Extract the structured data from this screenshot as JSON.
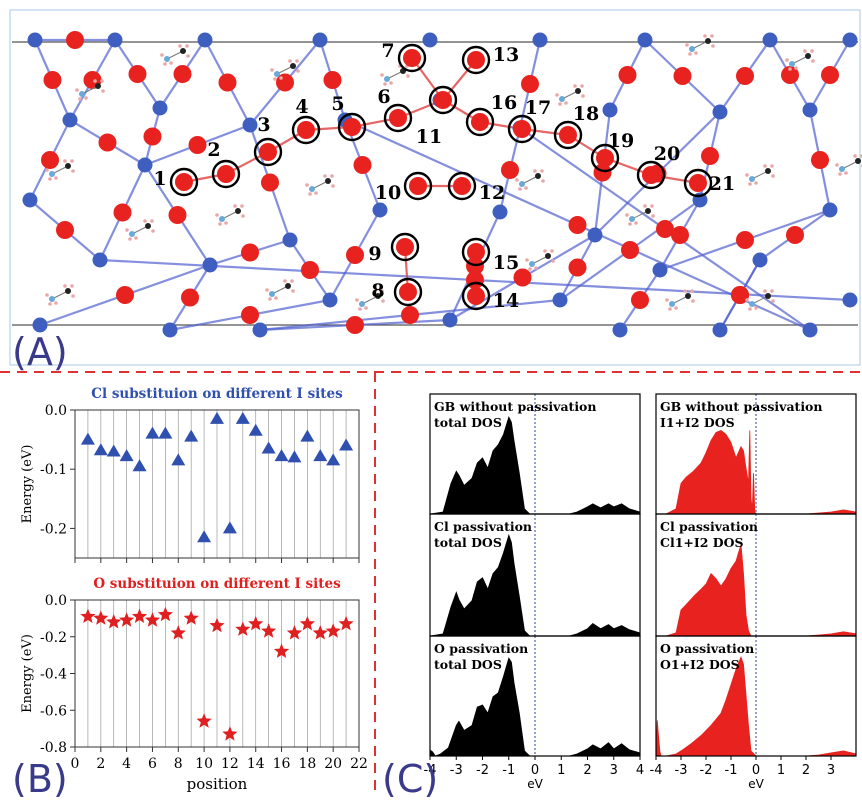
{
  "panel_labels": {
    "a": "(A)",
    "b": "(B)",
    "c": "(C)"
  },
  "colors": {
    "atom_red": "#e8231f",
    "atom_blue": "#3f5fc0",
    "bond_red": "#e04040",
    "bond_blue": "#5060d0",
    "cl_series": "#3050b0",
    "o_series": "#e02020",
    "black_dos": "#000000",
    "red_dos": "#e8231f",
    "divider": "#e03030",
    "fermi_line": "#3040a0"
  },
  "structure": {
    "site_numbers": [
      "1",
      "2",
      "3",
      "4",
      "5",
      "6",
      "7",
      "8",
      "9",
      "10",
      "11",
      "12",
      "13",
      "14",
      "15",
      "16",
      "17",
      "18",
      "19",
      "20",
      "21"
    ]
  },
  "chart_data": [
    {
      "type": "scatter",
      "title": "Cl substituion on different I sites",
      "ylabel": "Energy (eV)",
      "xlabel": "",
      "xlim": [
        0,
        22
      ],
      "ylim": [
        -0.25,
        0.0
      ],
      "grid": true,
      "marker": "triangle",
      "yticks": [
        "0.0",
        "-0.1",
        "-0.2"
      ],
      "x": [
        1,
        2,
        3,
        4,
        5,
        6,
        7,
        8,
        9,
        10,
        11,
        12,
        13,
        14,
        15,
        16,
        17,
        18,
        19,
        20,
        21
      ],
      "values": [
        -0.05,
        -0.068,
        -0.07,
        -0.078,
        -0.095,
        -0.04,
        -0.04,
        -0.085,
        -0.045,
        -0.215,
        -0.015,
        -0.2,
        -0.015,
        -0.035,
        -0.065,
        -0.078,
        -0.08,
        -0.045,
        -0.078,
        -0.085,
        -0.06
      ]
    },
    {
      "type": "scatter",
      "title": "O substituion on different I sites",
      "ylabel": "Energy (eV)",
      "xlabel": "position",
      "xlim": [
        0,
        22
      ],
      "ylim": [
        -0.8,
        0.0
      ],
      "grid": true,
      "marker": "star",
      "yticks": [
        "0.0",
        "-0.2",
        "-0.4",
        "-0.6",
        "-0.8"
      ],
      "xticks": [
        "0",
        "2",
        "4",
        "6",
        "8",
        "10",
        "12",
        "14",
        "16",
        "18",
        "20",
        "22"
      ],
      "x": [
        1,
        2,
        3,
        4,
        5,
        6,
        7,
        8,
        9,
        10,
        11,
        12,
        13,
        14,
        15,
        16,
        17,
        18,
        19,
        20,
        21
      ],
      "values": [
        -0.09,
        -0.1,
        -0.12,
        -0.11,
        -0.09,
        -0.11,
        -0.08,
        -0.18,
        -0.1,
        -0.66,
        -0.14,
        -0.73,
        -0.16,
        -0.13,
        -0.17,
        -0.28,
        -0.18,
        -0.13,
        -0.18,
        -0.17,
        -0.13
      ]
    },
    {
      "type": "area",
      "xlabel": "eV",
      "xlim": [
        -4,
        4
      ],
      "xticks": [
        "-4",
        "-3",
        "-2",
        "-1",
        "0",
        "1",
        "2",
        "3",
        "4"
      ],
      "panels": [
        {
          "label1": "GB without passivation",
          "label2": "total DOS",
          "color": "#000000",
          "x": [
            -4,
            -3.5,
            -3.2,
            -3.0,
            -2.9,
            -2.7,
            -2.4,
            -2.2,
            -2.0,
            -1.8,
            -1.6,
            -1.4,
            -1.2,
            -1.0,
            -0.9,
            -0.8,
            -0.6,
            -0.4,
            -0.2,
            0,
            0.5,
            1,
            1.3,
            1.6,
            2.0,
            2.2,
            2.5,
            2.8,
            3.0,
            3.3,
            3.6,
            4
          ],
          "y": [
            0,
            0.02,
            0.3,
            0.42,
            0.38,
            0.28,
            0.35,
            0.5,
            0.55,
            0.45,
            0.62,
            0.68,
            0.78,
            0.95,
            0.9,
            0.72,
            0.4,
            0.05,
            0,
            0,
            0,
            0,
            0,
            0.02,
            0.07,
            0.1,
            0.06,
            0.1,
            0.07,
            0.1,
            0.05,
            0.02
          ]
        },
        {
          "label1": "Cl passivation",
          "label2": "total DOS",
          "color": "#000000",
          "x": [
            -4,
            -3.5,
            -3.2,
            -3.0,
            -2.9,
            -2.7,
            -2.4,
            -2.2,
            -2.0,
            -1.8,
            -1.6,
            -1.4,
            -1.2,
            -1.0,
            -0.9,
            -0.8,
            -0.6,
            -0.4,
            -0.2,
            0,
            0.5,
            1,
            1.3,
            1.6,
            2.0,
            2.2,
            2.5,
            2.8,
            3.0,
            3.3,
            3.6,
            4
          ],
          "y": [
            0,
            0.02,
            0.28,
            0.42,
            0.35,
            0.26,
            0.34,
            0.52,
            0.56,
            0.45,
            0.6,
            0.66,
            0.8,
            0.97,
            0.9,
            0.7,
            0.38,
            0.05,
            0,
            0,
            0,
            0,
            0,
            0.02,
            0.07,
            0.12,
            0.07,
            0.11,
            0.07,
            0.1,
            0.06,
            0.03
          ]
        },
        {
          "label1": "O passivation",
          "label2": "total DOS",
          "color": "#000000",
          "x": [
            -4,
            -3.9,
            -3.8,
            -3.6,
            -3.3,
            -3.0,
            -2.9,
            -2.7,
            -2.4,
            -2.2,
            -2.0,
            -1.8,
            -1.6,
            -1.4,
            -1.2,
            -1.0,
            -0.9,
            -0.8,
            -0.6,
            -0.4,
            -0.2,
            0,
            0.5,
            1,
            1.3,
            1.6,
            2.0,
            2.2,
            2.5,
            2.8,
            3.0,
            3.3,
            3.6,
            4
          ],
          "y": [
            0.06,
            0.04,
            0,
            0.02,
            0.08,
            0.3,
            0.34,
            0.25,
            0.3,
            0.48,
            0.5,
            0.42,
            0.58,
            0.62,
            0.78,
            0.96,
            0.92,
            0.72,
            0.42,
            0.05,
            0,
            0,
            0,
            0,
            0,
            0.02,
            0.07,
            0.11,
            0.07,
            0.13,
            0.07,
            0.12,
            0.06,
            0.03
          ]
        },
        {
          "label1": "GB without passivation",
          "label2": "I1+I2 DOS",
          "color": "#e8231f",
          "x": [
            -4,
            -3.6,
            -3.2,
            -3.0,
            -2.8,
            -2.5,
            -2.2,
            -2.0,
            -1.8,
            -1.6,
            -1.4,
            -1.2,
            -1.0,
            -0.8,
            -0.6,
            -0.5,
            -0.4,
            -0.3,
            -0.25,
            -0.2,
            -0.15,
            -0.1,
            -0.05,
            0,
            0.2,
            1,
            2,
            2.5,
            3,
            3.5,
            4
          ],
          "y": [
            0,
            0,
            0.05,
            0.3,
            0.36,
            0.42,
            0.5,
            0.6,
            0.72,
            0.8,
            0.82,
            0.78,
            0.7,
            0.55,
            0.66,
            0.62,
            0.45,
            0.3,
            0.82,
            0.15,
            0.05,
            0.4,
            0.02,
            0,
            0,
            0,
            0,
            0.01,
            0.02,
            0.04,
            0.02
          ]
        },
        {
          "label1": "Cl passivation",
          "label2": "Cl1+I2 DOS",
          "color": "#e8231f",
          "x": [
            -4,
            -3.6,
            -3.2,
            -3.0,
            -2.8,
            -2.5,
            -2.2,
            -2.0,
            -1.8,
            -1.6,
            -1.4,
            -1.2,
            -1.0,
            -0.8,
            -0.6,
            -0.5,
            -0.4,
            -0.3,
            -0.2,
            0,
            0.2,
            1,
            2,
            2.5,
            3,
            3.5,
            4
          ],
          "y": [
            0,
            0,
            0.03,
            0.25,
            0.3,
            0.38,
            0.45,
            0.5,
            0.6,
            0.55,
            0.48,
            0.55,
            0.65,
            0.72,
            0.88,
            0.6,
            0.2,
            0.05,
            0,
            0,
            0,
            0,
            0,
            0.01,
            0.02,
            0.04,
            0.02
          ]
        },
        {
          "label1": "O passivation",
          "label2": "O1+I2 DOS",
          "color": "#e8231f",
          "x": [
            -4,
            -3.95,
            -3.9,
            -3.85,
            -3.8,
            -3.6,
            -3.2,
            -3.0,
            -2.6,
            -2.2,
            -1.8,
            -1.4,
            -1.2,
            -1.0,
            -0.8,
            -0.6,
            -0.5,
            -0.4,
            -0.3,
            -0.2,
            0,
            0.2,
            1,
            2,
            2.5,
            3,
            3.5,
            4
          ],
          "y": [
            0,
            0.35,
            0.2,
            0.05,
            0,
            0,
            0.02,
            0.05,
            0.12,
            0.2,
            0.3,
            0.42,
            0.55,
            0.7,
            0.85,
            0.97,
            0.9,
            0.6,
            0.3,
            0.05,
            0,
            0,
            0,
            0,
            0.01,
            0.03,
            0.05,
            0.02
          ]
        }
      ]
    }
  ]
}
